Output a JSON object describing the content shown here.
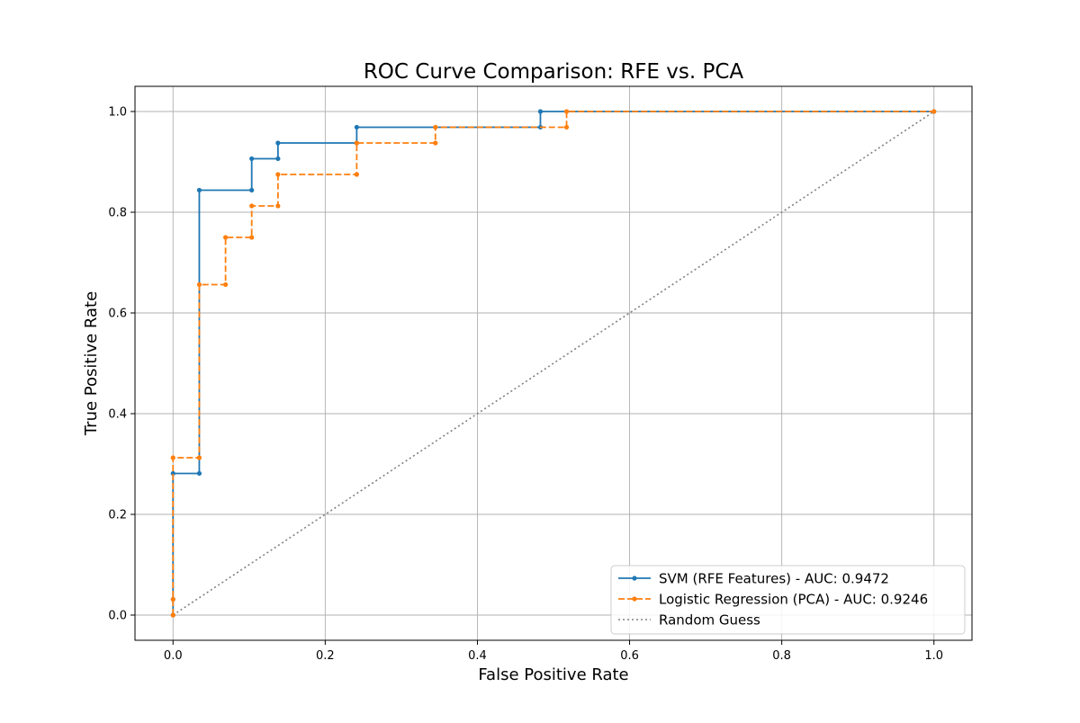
{
  "chart_data": {
    "type": "line",
    "title": "ROC Curve Comparison: RFE vs. PCA",
    "xlabel": "False Positive Rate",
    "ylabel": "True Positive Rate",
    "xlim": [
      -0.05,
      1.05
    ],
    "ylim": [
      -0.05,
      1.05
    ],
    "xticks": [
      0.0,
      0.2,
      0.4,
      0.6,
      0.8,
      1.0
    ],
    "yticks": [
      0.0,
      0.2,
      0.4,
      0.6,
      0.8,
      1.0
    ],
    "xtick_labels": [
      "0.0",
      "0.2",
      "0.4",
      "0.6",
      "0.8",
      "1.0"
    ],
    "ytick_labels": [
      "0.0",
      "0.2",
      "0.4",
      "0.6",
      "0.8",
      "1.0"
    ],
    "grid": true,
    "legend_position": "lower-right",
    "series": [
      {
        "name": "SVM (RFE Features) - AUC: 0.9472",
        "color": "#1f77b4",
        "style": "solid",
        "marker": "dot",
        "x": [
          0.0,
          0.0,
          0.0,
          0.0345,
          0.0345,
          0.1034,
          0.1034,
          0.1379,
          0.1379,
          0.2414,
          0.2414,
          0.4828,
          0.4828,
          1.0
        ],
        "y": [
          0.0,
          0.0313,
          0.2813,
          0.2813,
          0.8438,
          0.8438,
          0.9063,
          0.9063,
          0.9375,
          0.9375,
          0.9688,
          0.9688,
          1.0,
          1.0
        ]
      },
      {
        "name": "Logistic Regression (PCA) - AUC: 0.9246",
        "color": "#ff7f0e",
        "style": "dashed",
        "marker": "dot",
        "x": [
          0.0,
          0.0,
          0.0,
          0.0345,
          0.0345,
          0.069,
          0.069,
          0.1034,
          0.1034,
          0.1379,
          0.1379,
          0.2414,
          0.2414,
          0.3448,
          0.3448,
          0.5172,
          0.5172,
          1.0
        ],
        "y": [
          0.0,
          0.0313,
          0.3125,
          0.3125,
          0.6563,
          0.6563,
          0.75,
          0.75,
          0.8125,
          0.8125,
          0.875,
          0.875,
          0.9375,
          0.9375,
          0.9688,
          0.9688,
          1.0,
          1.0
        ]
      },
      {
        "name": "Random Guess",
        "color": "#808080",
        "style": "dotted",
        "marker": "none",
        "x": [
          0.0,
          1.0
        ],
        "y": [
          0.0,
          1.0
        ]
      }
    ]
  }
}
